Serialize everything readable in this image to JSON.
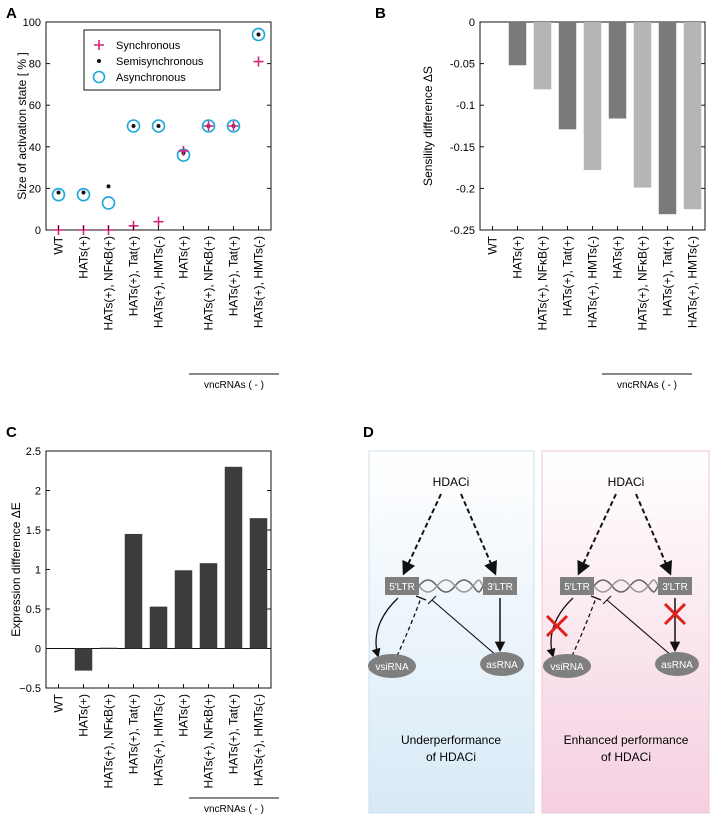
{
  "panel_labels": [
    "A",
    "B",
    "C",
    "D"
  ],
  "colors": {
    "sync": "#d4257f",
    "semi": "#111111",
    "async": "#19a8d8",
    "bar_dark": "#7a7a7a",
    "bar_light": "#b5b5b5",
    "bar_expr": "#3c3c3c",
    "box_left_top": "#ffffff",
    "box_left_bottom": "#d8eaf6",
    "box_right_top": "#ffffff",
    "box_right_bottom": "#f5cfe0",
    "node": "#7f7f7f",
    "cross": "#e0201b"
  },
  "vnc_label": "vncRNAs ( - )",
  "chart_data": [
    {
      "id": "A",
      "type": "scatter",
      "title": "",
      "xlabel": "",
      "ylabel": "Size of activation state  [ % ]",
      "ylim": [
        0,
        100
      ],
      "yticks": [
        0,
        20,
        40,
        60,
        80,
        100
      ],
      "categories": [
        "WT",
        "HATs(+)",
        "HATs(+), NFκB(+)",
        "HATs(+), Tat(+)",
        "HATs(+), HMTs(-)",
        "HATs(+)",
        "HATs(+), NFκB(+)",
        "HATs(+), Tat(+)",
        "HATs(+), HMTs(-)"
      ],
      "legend": "top-left",
      "series": [
        {
          "name": "Synchronous",
          "marker": "plus",
          "values": [
            0,
            0,
            0,
            2,
            4,
            38,
            50,
            50,
            81
          ]
        },
        {
          "name": "Semisynchronous",
          "marker": "dot",
          "values": [
            18,
            18,
            21,
            50,
            50,
            37,
            50,
            50,
            94
          ]
        },
        {
          "name": "Asynchronous",
          "marker": "circle",
          "values": [
            17,
            17,
            13,
            50,
            50,
            36,
            50,
            50,
            94
          ]
        }
      ]
    },
    {
      "id": "B",
      "type": "bar",
      "title": "",
      "xlabel": "",
      "ylabel": "Sensility difference   ΔS",
      "ylim": [
        -0.25,
        0
      ],
      "yticks": [
        0,
        -0.05,
        -0.1,
        -0.15,
        -0.2,
        -0.25
      ],
      "ytick_labels": [
        "0",
        "-0.05",
        "-0.1",
        "-0.15",
        "-0.2",
        "-0.25"
      ],
      "categories": [
        "WT",
        "HATs(+)",
        "HATs(+), NFκB(+)",
        "HATs(+), Tat(+)",
        "HATs(+), HMTs(-)",
        "HATs(+)",
        "HATs(+), NFκB(+)",
        "HATs(+), Tat(+)",
        "HATs(+), HMTs(-)"
      ],
      "values": [
        0,
        -0.052,
        -0.081,
        -0.129,
        -0.178,
        -0.116,
        -0.199,
        -0.231,
        -0.225
      ],
      "shades": [
        "dark",
        "dark",
        "light",
        "dark",
        "light",
        "dark",
        "light",
        "dark",
        "light"
      ]
    },
    {
      "id": "C",
      "type": "bar",
      "title": "",
      "xlabel": "",
      "ylabel": "Expression difference   ΔE",
      "ylim": [
        -0.5,
        2.5
      ],
      "yticks": [
        -0.5,
        0,
        0.5,
        1,
        1.5,
        2,
        2.5
      ],
      "ytick_labels": [
        "−0.5",
        "0",
        "0.5",
        "1",
        "1.5",
        "2",
        "2.5"
      ],
      "categories": [
        "WT",
        "HATs(+)",
        "HATs(+), NFκB(+)",
        "HATs(+), Tat(+)",
        "HATs(+), HMTs(-)",
        "HATs(+)",
        "HATs(+), NFκB(+)",
        "HATs(+), Tat(+)",
        "HATs(+), HMTs(-)"
      ],
      "values": [
        0,
        -0.28,
        0.01,
        1.45,
        0.53,
        0.99,
        1.08,
        2.3,
        1.65
      ]
    }
  ],
  "diagram": {
    "left": {
      "top_node": "HDACi",
      "ltr5": "5'LTR",
      "ltr3": "3'LTR",
      "rna_left": "vsiRNA",
      "rna_right": "asRNA",
      "caption": [
        "Underperformance",
        "of HDACi"
      ]
    },
    "right": {
      "top_node": "HDACi",
      "ltr5": "5'LTR",
      "ltr3": "3'LTR",
      "rna_left": "vsiRNA",
      "rna_right": "asRNA",
      "caption": [
        "Enhanced performance",
        "of HDACi"
      ]
    }
  }
}
